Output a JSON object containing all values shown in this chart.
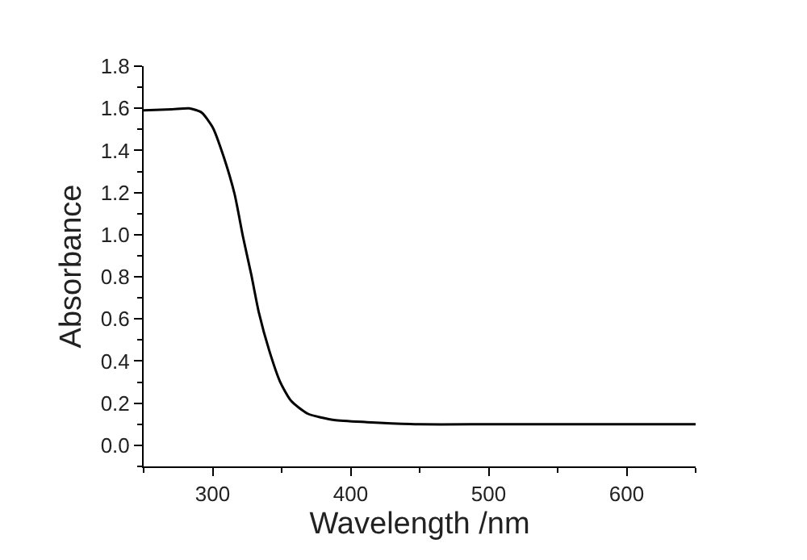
{
  "chart_data": {
    "type": "line",
    "xlabel": "Wavelength /nm",
    "ylabel": "Absorbance",
    "x": [
      250,
      270,
      283,
      292,
      300,
      308,
      316,
      322,
      328,
      333.5,
      341,
      349,
      357,
      369,
      388,
      412,
      450,
      500,
      550,
      600,
      650
    ],
    "series": [
      {
        "color": "#000000",
        "values": [
          1.59,
          1.595,
          1.6,
          1.58,
          1.51,
          1.37,
          1.19,
          0.99,
          0.81,
          0.63,
          0.45,
          0.3,
          0.21,
          0.15,
          0.12,
          0.11,
          0.1,
          0.1,
          0.1,
          0.1,
          0.1
        ]
      }
    ],
    "xlim": [
      250,
      650
    ],
    "xticks": [
      300,
      400,
      500,
      600
    ],
    "ylim": [
      -0.1,
      1.8
    ],
    "yticks": [
      {
        "value": 0,
        "label": "0.0"
      },
      0.2,
      0.4,
      0.6,
      0.8,
      {
        "value": 1,
        "label": "1.0"
      },
      1.2,
      1.4,
      1.6,
      1.8
    ],
    "legend": false,
    "marker": "none",
    "line_style": "solid"
  }
}
